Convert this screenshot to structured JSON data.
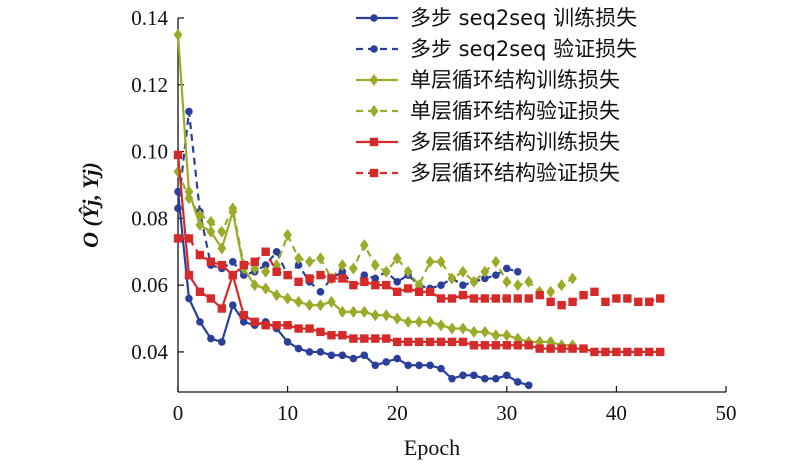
{
  "chart_data": {
    "type": "line",
    "xlabel": "Epoch",
    "ylabel": "O (Ŷj, Yj)",
    "xlim": [
      0,
      50
    ],
    "ylim": [
      0.028,
      0.14
    ],
    "xticks": [
      0,
      10,
      20,
      30,
      40,
      50
    ],
    "xtick_labels": [
      "0",
      "10",
      "20",
      "30",
      "40",
      "50"
    ],
    "yticks": [
      0.04,
      0.06,
      0.08,
      0.1,
      0.12,
      0.14
    ],
    "ytick_labels": [
      "0.04",
      "0.06",
      "0.08",
      "0.10",
      "0.12",
      "0.14"
    ],
    "grid": false,
    "legend_position": "top-right",
    "series": [
      {
        "name": "多步 seq2seq 训练损失",
        "color": "#2a3f9a",
        "dash": "solid",
        "marker": "circle",
        "x": [
          0,
          1,
          2,
          3,
          4,
          5,
          6,
          7,
          8,
          9,
          10,
          11,
          12,
          13,
          14,
          15,
          16,
          17,
          18,
          19,
          20,
          21,
          22,
          23,
          24,
          25,
          26,
          27,
          28,
          29,
          30,
          31,
          32
        ],
        "y": [
          0.088,
          0.056,
          0.049,
          0.044,
          0.043,
          0.054,
          0.049,
          0.048,
          0.049,
          0.047,
          0.043,
          0.041,
          0.04,
          0.04,
          0.039,
          0.039,
          0.038,
          0.039,
          0.036,
          0.037,
          0.038,
          0.036,
          0.036,
          0.036,
          0.035,
          0.032,
          0.033,
          0.033,
          0.032,
          0.032,
          0.033,
          0.031,
          0.03
        ]
      },
      {
        "name": "多步 seq2seq 验证损失",
        "color": "#2a3f9a",
        "dash": "dashed",
        "marker": "circle",
        "x": [
          0,
          1,
          2,
          3,
          4,
          5,
          6,
          7,
          8,
          9,
          10,
          11,
          12,
          13,
          14,
          15,
          16,
          17,
          18,
          19,
          20,
          21,
          22,
          23,
          24,
          25,
          26,
          27,
          28,
          29,
          30,
          31
        ],
        "y": [
          0.083,
          0.112,
          0.082,
          0.066,
          0.065,
          0.067,
          0.063,
          0.064,
          0.066,
          0.07,
          0.063,
          0.066,
          0.061,
          0.058,
          0.062,
          0.064,
          0.06,
          0.063,
          0.062,
          0.064,
          0.061,
          0.063,
          0.06,
          0.059,
          0.06,
          0.062,
          0.06,
          0.061,
          0.062,
          0.063,
          0.065,
          0.064
        ]
      },
      {
        "name": "单层循环结构训练损失",
        "color": "#9caa2a",
        "dash": "solid",
        "marker": "diamond",
        "x": [
          0,
          1,
          2,
          3,
          4,
          5,
          6,
          7,
          8,
          9,
          10,
          11,
          12,
          13,
          14,
          15,
          16,
          17,
          18,
          19,
          20,
          21,
          22,
          23,
          24,
          25,
          26,
          27,
          28,
          29,
          30,
          31,
          32,
          33,
          34,
          35,
          36
        ],
        "y": [
          0.135,
          0.088,
          0.078,
          0.076,
          0.071,
          0.082,
          0.065,
          0.06,
          0.059,
          0.057,
          0.056,
          0.055,
          0.054,
          0.054,
          0.055,
          0.052,
          0.052,
          0.052,
          0.051,
          0.051,
          0.05,
          0.049,
          0.049,
          0.049,
          0.048,
          0.047,
          0.047,
          0.046,
          0.046,
          0.045,
          0.045,
          0.044,
          0.043,
          0.043,
          0.043,
          0.042,
          0.042
        ]
      },
      {
        "name": "单层循环结构验证损失",
        "color": "#9caa2a",
        "dash": "dashed",
        "marker": "diamond",
        "x": [
          0,
          1,
          2,
          3,
          4,
          5,
          6,
          7,
          8,
          9,
          10,
          11,
          12,
          13,
          14,
          15,
          16,
          17,
          18,
          19,
          20,
          21,
          22,
          23,
          24,
          25,
          26,
          27,
          28,
          29,
          30,
          31,
          32,
          33,
          34,
          35,
          36
        ],
        "y": [
          0.094,
          0.086,
          0.081,
          0.079,
          0.076,
          0.083,
          0.066,
          0.065,
          0.064,
          0.066,
          0.075,
          0.068,
          0.067,
          0.068,
          0.062,
          0.066,
          0.065,
          0.072,
          0.066,
          0.064,
          0.068,
          0.064,
          0.06,
          0.067,
          0.067,
          0.062,
          0.064,
          0.061,
          0.064,
          0.067,
          0.061,
          0.06,
          0.061,
          0.058,
          0.058,
          0.06,
          0.062
        ]
      },
      {
        "name": "多层循环结构训练损失",
        "color": "#d42a2a",
        "dash": "solid",
        "marker": "square",
        "x": [
          0,
          1,
          2,
          3,
          4,
          5,
          6,
          7,
          8,
          9,
          10,
          11,
          12,
          13,
          14,
          15,
          16,
          17,
          18,
          19,
          20,
          21,
          22,
          23,
          24,
          25,
          26,
          27,
          28,
          29,
          30,
          31,
          32,
          33,
          34,
          35,
          36,
          37,
          38,
          39,
          40,
          41,
          42,
          43,
          44
        ],
        "y": [
          0.099,
          0.063,
          0.058,
          0.056,
          0.053,
          0.063,
          0.051,
          0.049,
          0.048,
          0.048,
          0.048,
          0.047,
          0.047,
          0.046,
          0.045,
          0.045,
          0.044,
          0.044,
          0.044,
          0.044,
          0.043,
          0.043,
          0.043,
          0.043,
          0.043,
          0.043,
          0.043,
          0.042,
          0.042,
          0.042,
          0.042,
          0.042,
          0.042,
          0.041,
          0.041,
          0.041,
          0.041,
          0.041,
          0.04,
          0.04,
          0.04,
          0.04,
          0.04,
          0.04,
          0.04
        ]
      },
      {
        "name": "多层循环结构验证损失",
        "color": "#d42a2a",
        "dash": "dashed",
        "marker": "square",
        "x": [
          0,
          1,
          2,
          3,
          4,
          5,
          6,
          7,
          8,
          9,
          10,
          11,
          12,
          13,
          14,
          15,
          16,
          17,
          18,
          19,
          20,
          21,
          22,
          23,
          24,
          25,
          26,
          27,
          28,
          29,
          30,
          31,
          32,
          33,
          34,
          35,
          36,
          37,
          38,
          39,
          40,
          41,
          42,
          43,
          44
        ],
        "y": [
          0.074,
          0.074,
          0.069,
          0.067,
          0.066,
          0.063,
          0.066,
          0.067,
          0.07,
          0.064,
          0.063,
          0.061,
          0.062,
          0.063,
          0.062,
          0.062,
          0.06,
          0.061,
          0.06,
          0.06,
          0.058,
          0.059,
          0.058,
          0.058,
          0.056,
          0.056,
          0.057,
          0.056,
          0.056,
          0.056,
          0.056,
          0.056,
          0.056,
          0.057,
          0.055,
          0.054,
          0.055,
          0.057,
          0.058,
          0.055,
          0.056,
          0.056,
          0.055,
          0.055,
          0.056
        ]
      }
    ]
  }
}
